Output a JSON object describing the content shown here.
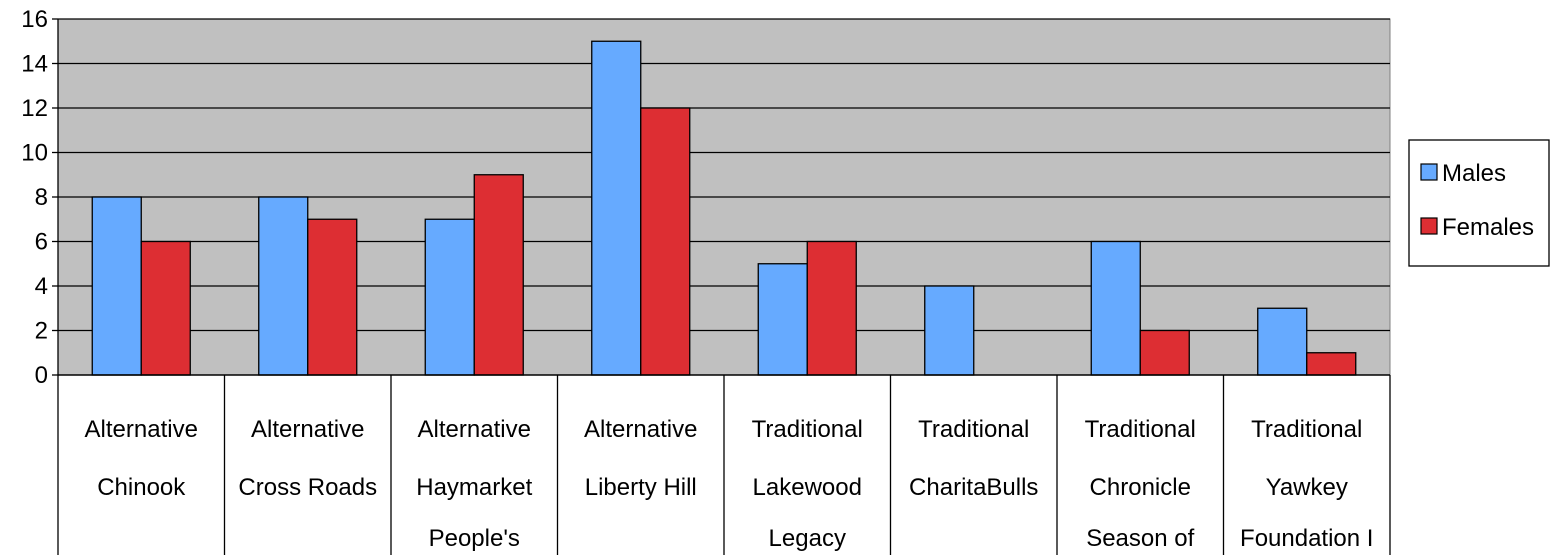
{
  "chart_data": {
    "type": "bar",
    "categories": [
      [
        "Alternative",
        "Chinook"
      ],
      [
        "Alternative",
        "Cross Roads"
      ],
      [
        "Alternative",
        "Haymarket",
        "People's"
      ],
      [
        "Alternative",
        "Liberty Hill"
      ],
      [
        "Traditional",
        "Lakewood",
        "Legacy"
      ],
      [
        "Traditional",
        "CharitaBulls"
      ],
      [
        "Traditional",
        "Chronicle",
        "Season of"
      ],
      [
        "Traditional",
        "Yawkey",
        "Foundation I"
      ]
    ],
    "series": [
      {
        "name": "Males",
        "color": "#66AAFF",
        "values": [
          8,
          8,
          7,
          15,
          5,
          4,
          6,
          3
        ]
      },
      {
        "name": "Females",
        "color": "#DD2E33",
        "values": [
          6,
          7,
          9,
          12,
          6,
          0,
          2,
          1
        ]
      }
    ],
    "ylim": [
      0,
      16
    ],
    "yticks": [
      "0",
      "2",
      "4",
      "6",
      "8",
      "10",
      "12",
      "14",
      "16"
    ],
    "grid": true,
    "legend_position": "right",
    "plot_background": "#C0C0C0"
  }
}
